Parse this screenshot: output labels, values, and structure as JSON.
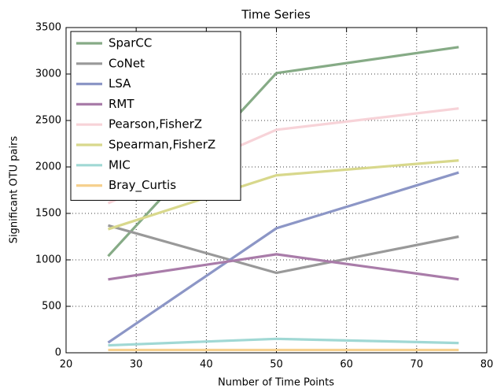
{
  "chart_data": {
    "type": "line",
    "title": "Time Series",
    "x_label": "Number of Time Points",
    "y_label": "Significant OTU pairs",
    "x": [
      26,
      50,
      76
    ],
    "series": [
      {
        "name": "SparCC",
        "color": "#86ab86",
        "values": [
          1040,
          3010,
          3290
        ]
      },
      {
        "name": "CoNet",
        "color": "#999999",
        "values": [
          1370,
          860,
          1250
        ]
      },
      {
        "name": "LSA",
        "color": "#8c96c6",
        "values": [
          110,
          1340,
          1940
        ]
      },
      {
        "name": "RMT",
        "color": "#a97ca9",
        "values": [
          790,
          1060,
          790
        ]
      },
      {
        "name": "Pearson,FisherZ",
        "color": "#f7d3d8",
        "values": [
          1610,
          2400,
          2630
        ]
      },
      {
        "name": "Spearman,FisherZ",
        "color": "#d8d88c",
        "values": [
          1330,
          1910,
          2070
        ]
      },
      {
        "name": "MIC",
        "color": "#a0d8d4",
        "values": [
          80,
          150,
          105
        ]
      },
      {
        "name": "Bray_Curtis",
        "color": "#f6d08e",
        "values": [
          30,
          30,
          30
        ]
      }
    ],
    "xlim": [
      20,
      80
    ],
    "xticks": [
      20,
      30,
      40,
      50,
      60,
      70,
      80
    ],
    "ylim": [
      0,
      3500
    ],
    "yticks": [
      0,
      500,
      1000,
      1500,
      2000,
      2500,
      3000,
      3500
    ],
    "grid": true,
    "legend": "upper-left"
  }
}
